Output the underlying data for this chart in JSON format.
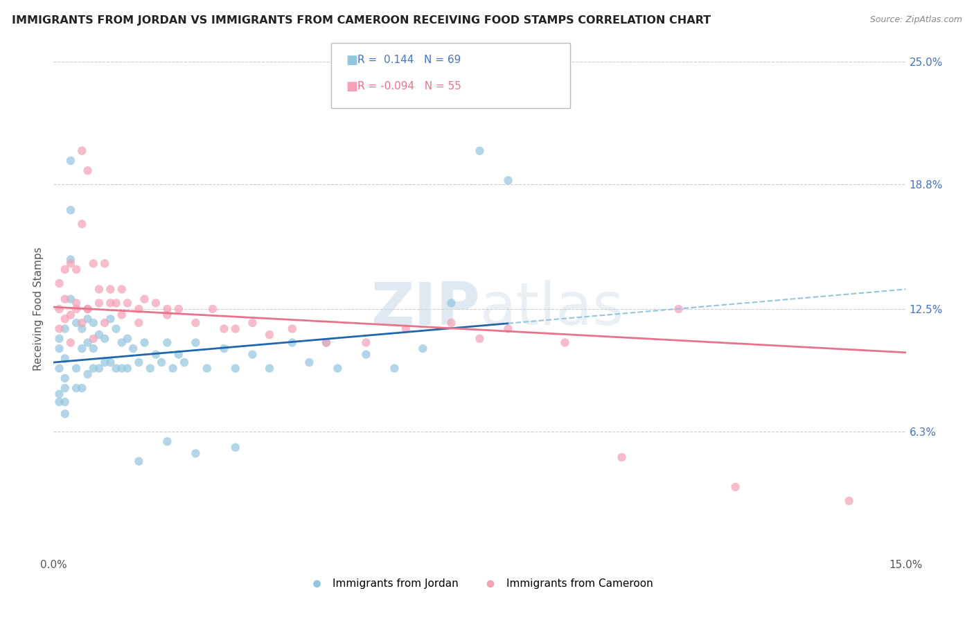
{
  "title": "IMMIGRANTS FROM JORDAN VS IMMIGRANTS FROM CAMEROON RECEIVING FOOD STAMPS CORRELATION CHART",
  "source": "Source: ZipAtlas.com",
  "ylabel": "Receiving Food Stamps",
  "xlim": [
    0.0,
    0.15
  ],
  "ylim": [
    0.0,
    0.25
  ],
  "ytick_values": [
    0.063,
    0.125,
    0.188,
    0.25
  ],
  "ytick_labels": [
    "6.3%",
    "12.5%",
    "18.8%",
    "25.0%"
  ],
  "jordan_color": "#92c5de",
  "cameroon_color": "#f4a0b5",
  "jordan_line_color": "#2166ac",
  "cameroon_line_color": "#e8728a",
  "jordan_line_dash_color": "#92c5de",
  "jordan_R": 0.144,
  "jordan_N": 69,
  "cameroon_R": -0.094,
  "cameroon_N": 55,
  "watermark_zip": "ZIP",
  "watermark_atlas": "atlas",
  "background_color": "#ffffff",
  "grid_color": "#cccccc",
  "legend_label_jordan": "Immigrants from Jordan",
  "legend_label_cameroon": "Immigrants from Cameroon",
  "jordan_line_y0": 0.098,
  "jordan_line_y1": 0.135,
  "cameroon_line_y0": 0.126,
  "cameroon_line_y1": 0.103,
  "jordan_x": [
    0.001,
    0.001,
    0.001,
    0.001,
    0.001,
    0.002,
    0.002,
    0.002,
    0.002,
    0.002,
    0.002,
    0.003,
    0.003,
    0.003,
    0.003,
    0.004,
    0.004,
    0.004,
    0.005,
    0.005,
    0.005,
    0.006,
    0.006,
    0.006,
    0.007,
    0.007,
    0.007,
    0.008,
    0.008,
    0.009,
    0.009,
    0.01,
    0.01,
    0.011,
    0.011,
    0.012,
    0.012,
    0.013,
    0.013,
    0.014,
    0.015,
    0.016,
    0.017,
    0.018,
    0.019,
    0.02,
    0.021,
    0.022,
    0.023,
    0.025,
    0.027,
    0.03,
    0.032,
    0.035,
    0.038,
    0.042,
    0.045,
    0.048,
    0.05,
    0.055,
    0.06,
    0.065,
    0.07,
    0.075,
    0.08,
    0.032,
    0.015,
    0.02,
    0.025
  ],
  "jordan_y": [
    0.095,
    0.105,
    0.11,
    0.082,
    0.078,
    0.1,
    0.115,
    0.09,
    0.085,
    0.078,
    0.072,
    0.13,
    0.15,
    0.175,
    0.2,
    0.118,
    0.095,
    0.085,
    0.105,
    0.115,
    0.085,
    0.12,
    0.108,
    0.092,
    0.105,
    0.118,
    0.095,
    0.112,
    0.095,
    0.11,
    0.098,
    0.12,
    0.098,
    0.115,
    0.095,
    0.108,
    0.095,
    0.11,
    0.095,
    0.105,
    0.098,
    0.108,
    0.095,
    0.102,
    0.098,
    0.108,
    0.095,
    0.102,
    0.098,
    0.108,
    0.095,
    0.105,
    0.095,
    0.102,
    0.095,
    0.108,
    0.098,
    0.108,
    0.095,
    0.102,
    0.095,
    0.105,
    0.128,
    0.205,
    0.19,
    0.055,
    0.048,
    0.058,
    0.052
  ],
  "cameroon_x": [
    0.001,
    0.001,
    0.001,
    0.002,
    0.002,
    0.002,
    0.003,
    0.003,
    0.004,
    0.004,
    0.005,
    0.005,
    0.006,
    0.006,
    0.007,
    0.007,
    0.008,
    0.009,
    0.009,
    0.01,
    0.011,
    0.012,
    0.013,
    0.015,
    0.016,
    0.018,
    0.02,
    0.022,
    0.025,
    0.028,
    0.032,
    0.035,
    0.038,
    0.042,
    0.048,
    0.055,
    0.062,
    0.07,
    0.075,
    0.08,
    0.09,
    0.1,
    0.11,
    0.12,
    0.14,
    0.003,
    0.005,
    0.004,
    0.006,
    0.008,
    0.01,
    0.012,
    0.015,
    0.02,
    0.03
  ],
  "cameroon_y": [
    0.115,
    0.125,
    0.138,
    0.13,
    0.145,
    0.12,
    0.148,
    0.108,
    0.145,
    0.125,
    0.168,
    0.205,
    0.195,
    0.125,
    0.148,
    0.11,
    0.135,
    0.148,
    0.118,
    0.135,
    0.128,
    0.135,
    0.128,
    0.125,
    0.13,
    0.128,
    0.125,
    0.125,
    0.118,
    0.125,
    0.115,
    0.118,
    0.112,
    0.115,
    0.108,
    0.108,
    0.115,
    0.118,
    0.11,
    0.115,
    0.108,
    0.05,
    0.125,
    0.035,
    0.028,
    0.122,
    0.118,
    0.128,
    0.125,
    0.128,
    0.128,
    0.122,
    0.118,
    0.122,
    0.115
  ]
}
